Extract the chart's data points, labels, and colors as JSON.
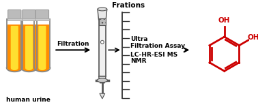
{
  "bg_color": "#ffffff",
  "text_color": "#000000",
  "arrow_color": "#000000",
  "red_color": "#CC0000",
  "tube_orange": "#FF8C00",
  "tube_yellow": "#FFE030",
  "tube_glass": "#E8E8E8",
  "tube_cap": "#BBBBBB",
  "col_glass": "#E0E0E0",
  "col_edge": "#555555",
  "label_human_urine": "human urine",
  "label_filtration": "Filtration",
  "label_fractions": "Frations",
  "label_ultra": "Ultra",
  "label_filtration_assay": "Filtration Assay",
  "label_lc": "LC-HR-ESI MS",
  "label_nmr": "NMR",
  "figsize": [
    3.78,
    1.57
  ],
  "dpi": 100
}
